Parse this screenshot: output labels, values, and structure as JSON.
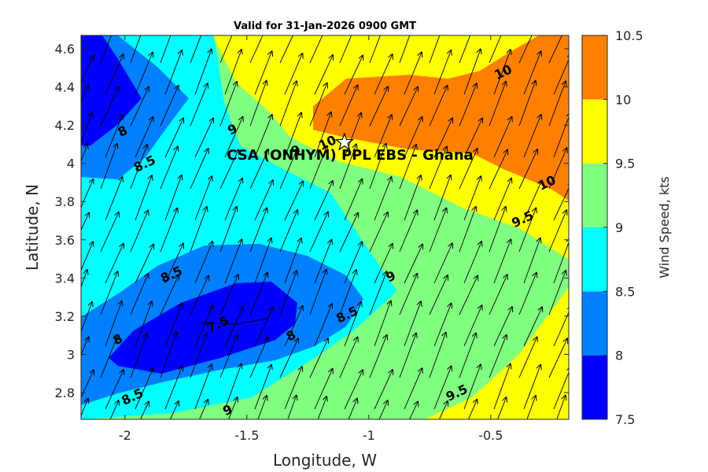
{
  "chart_data": {
    "type": "heatmap",
    "subtype": "filled-contour-with-wind-vectors",
    "title": "Valid for 31-Jan-2026 0900 GMT",
    "xlabel": "Longitude, W",
    "ylabel": "Latitude, N",
    "xlim": [
      -2.18,
      -0.18
    ],
    "ylim": [
      2.66,
      4.67
    ],
    "xticks": [
      -2,
      -1.5,
      -1,
      -0.5
    ],
    "xtick_labels": [
      "-2",
      "-1.5",
      "-1",
      "-0.5"
    ],
    "yticks": [
      2.8,
      3,
      3.2,
      3.4,
      3.6,
      3.8,
      4,
      4.2,
      4.4,
      4.6
    ],
    "ytick_labels": [
      "2.8",
      "3",
      "3.2",
      "3.4",
      "3.6",
      "3.8",
      "4",
      "4.2",
      "4.4",
      "4.6"
    ],
    "colorbar": {
      "label": "Wind Speed, kts",
      "levels": [
        7.5,
        8,
        8.5,
        9,
        9.5,
        10,
        10.5
      ],
      "tick_labels": [
        "7.5",
        "8",
        "8.5",
        "9",
        "9.5",
        "10",
        "10.5"
      ],
      "colors": [
        "#0000ff",
        "#0080ff",
        "#00ffff",
        "#80ff80",
        "#ffff00",
        "#ff8000"
      ]
    },
    "grid": false,
    "wind_vectors": {
      "direction": "toward north-northeast",
      "u_kts_approx": 3.5,
      "v_kts_approx": 8.5
    },
    "site": {
      "label": "CSA (ONHYM) PPL EBS  - Ghana",
      "lon": -1.1,
      "lat": 4.11,
      "marker": "star"
    },
    "contour_labels": [
      {
        "text": "8",
        "lon": -2.01,
        "lat": 4.17
      },
      {
        "text": "8.5",
        "lon": -1.92,
        "lat": 4.0
      },
      {
        "text": "9",
        "lon": -1.56,
        "lat": 4.18
      },
      {
        "text": "9",
        "lon": -1.3,
        "lat": 4.07
      },
      {
        "text": "10",
        "lon": -1.17,
        "lat": 4.11
      },
      {
        "text": "10",
        "lon": -0.45,
        "lat": 4.48
      },
      {
        "text": "10",
        "lon": -0.27,
        "lat": 3.9
      },
      {
        "text": "9.5",
        "lon": -0.37,
        "lat": 3.71
      },
      {
        "text": "8.5",
        "lon": -1.81,
        "lat": 3.42
      },
      {
        "text": "9",
        "lon": -0.91,
        "lat": 3.41
      },
      {
        "text": "7.5",
        "lon": -1.62,
        "lat": 3.16
      },
      {
        "text": "8",
        "lon": -1.32,
        "lat": 3.1
      },
      {
        "text": "8.5",
        "lon": -1.09,
        "lat": 3.21
      },
      {
        "text": "8",
        "lon": -2.03,
        "lat": 3.08
      },
      {
        "text": "8.5",
        "lon": -1.97,
        "lat": 2.78
      },
      {
        "text": "9",
        "lon": -1.58,
        "lat": 2.71
      },
      {
        "text": "9.5",
        "lon": -0.64,
        "lat": 2.8
      }
    ]
  }
}
